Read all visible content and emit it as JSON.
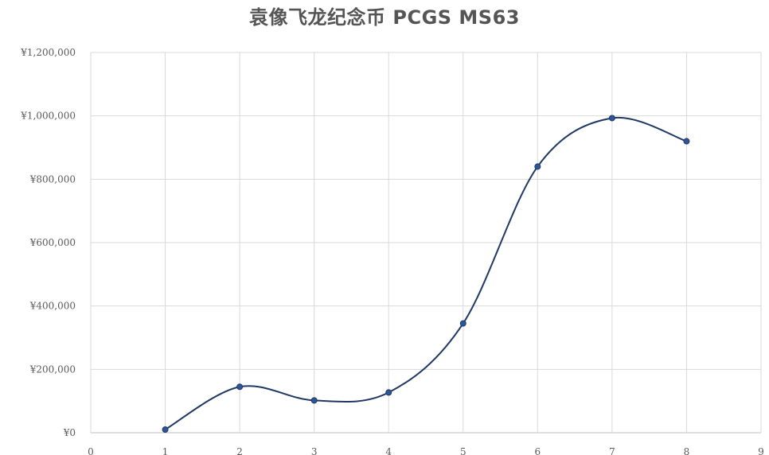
{
  "chart_data": {
    "type": "scatter",
    "title": "袁像飞龙纪念币 PCGS MS63",
    "xlabel": "",
    "ylabel": "",
    "x_ticks": [
      "0",
      "1",
      "2",
      "3",
      "4",
      "5",
      "6",
      "7",
      "8",
      "9"
    ],
    "y_ticks": [
      "¥0",
      "¥200,000",
      "¥400,000",
      "¥600,000",
      "¥800,000",
      "¥1,000,000",
      "¥1,200,000"
    ],
    "xlim": [
      0,
      9
    ],
    "ylim": [
      0,
      1200000
    ],
    "grid": true,
    "smooth": true,
    "series": [
      {
        "x": [
          1,
          2,
          3,
          4,
          5,
          6,
          7,
          8
        ],
        "y": [
          10000,
          145000,
          102000,
          127000,
          345000,
          840000,
          993000,
          920000
        ],
        "color": "#1f3864",
        "marker_color": "#2e5597"
      }
    ]
  }
}
